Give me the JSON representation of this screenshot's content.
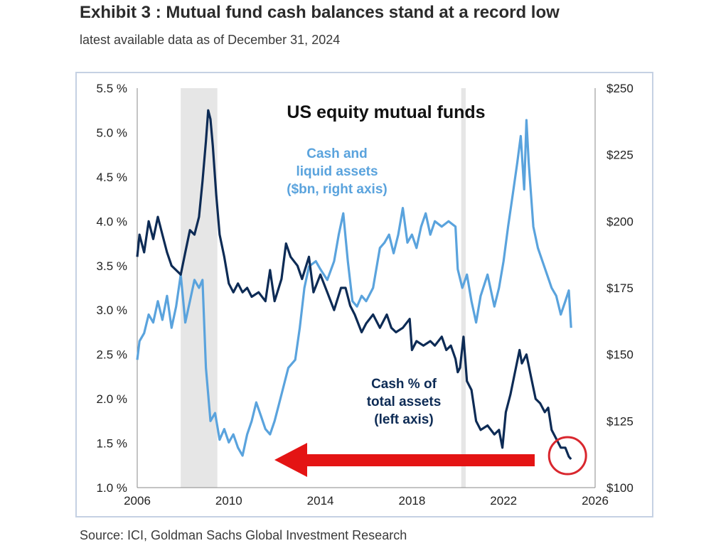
{
  "header": {
    "title": "Exhibit 3 : Mutual fund cash balances stand at a record low",
    "subtitle": "latest available data as of December 31, 2024"
  },
  "footer": {
    "source": "Source: ICI, Goldman Sachs Global Investment Research"
  },
  "colors": {
    "cash_pct": "#0d2b55",
    "cash_bn": "#5aa3dd",
    "recession_band": "#e6e6e6",
    "arrow": "#e41414",
    "circle": "#d9272e"
  },
  "chart_data": {
    "type": "line",
    "title": "US equity mutual funds",
    "x_axis": {
      "min": 2006,
      "max": 2026,
      "ticks": [
        2006,
        2010,
        2014,
        2018,
        2022,
        2026
      ],
      "tick_labels": [
        "2006",
        "2010",
        "2014",
        "2018",
        "2022",
        "2026"
      ]
    },
    "y_left": {
      "min": 1.0,
      "max": 5.5,
      "ticks": [
        1.0,
        1.5,
        2.0,
        2.5,
        3.0,
        3.5,
        4.0,
        4.5,
        5.0,
        5.5
      ],
      "tick_labels": [
        "1.0 %",
        "1.5 %",
        "2.0 %",
        "2.5 %",
        "3.0 %",
        "3.5 %",
        "4.0 %",
        "4.5 %",
        "5.0 %",
        "5.5 %"
      ]
    },
    "y_right": {
      "min": 100,
      "max": 250,
      "ticks": [
        100,
        125,
        150,
        175,
        200,
        225,
        250
      ],
      "tick_labels": [
        "$100",
        "$125",
        "$150",
        "$175",
        "$200",
        "$225",
        "$250"
      ]
    },
    "shaded_periods": [
      [
        2007.9,
        2009.5
      ],
      [
        2020.15,
        2020.35
      ]
    ],
    "series": [
      {
        "name": "Cash % of total assets (left axis)",
        "label_lines": [
          "Cash % of",
          "total assets",
          "(left axis)"
        ],
        "axis": "left",
        "points": [
          [
            2006.0,
            3.6
          ],
          [
            2006.1,
            3.85
          ],
          [
            2006.3,
            3.65
          ],
          [
            2006.5,
            4.0
          ],
          [
            2006.7,
            3.8
          ],
          [
            2006.9,
            4.05
          ],
          [
            2007.1,
            3.85
          ],
          [
            2007.3,
            3.65
          ],
          [
            2007.5,
            3.5
          ],
          [
            2007.7,
            3.45
          ],
          [
            2007.9,
            3.4
          ],
          [
            2008.1,
            3.65
          ],
          [
            2008.3,
            3.9
          ],
          [
            2008.5,
            3.85
          ],
          [
            2008.7,
            4.05
          ],
          [
            2008.85,
            4.45
          ],
          [
            2009.0,
            4.9
          ],
          [
            2009.1,
            5.25
          ],
          [
            2009.2,
            5.15
          ],
          [
            2009.3,
            4.85
          ],
          [
            2009.45,
            4.3
          ],
          [
            2009.6,
            3.85
          ],
          [
            2009.8,
            3.6
          ],
          [
            2010.0,
            3.3
          ],
          [
            2010.2,
            3.2
          ],
          [
            2010.4,
            3.3
          ],
          [
            2010.6,
            3.2
          ],
          [
            2010.8,
            3.25
          ],
          [
            2011.0,
            3.15
          ],
          [
            2011.3,
            3.2
          ],
          [
            2011.6,
            3.1
          ],
          [
            2011.8,
            3.45
          ],
          [
            2012.0,
            3.1
          ],
          [
            2012.3,
            3.35
          ],
          [
            2012.5,
            3.75
          ],
          [
            2012.7,
            3.6
          ],
          [
            2013.0,
            3.5
          ],
          [
            2013.2,
            3.35
          ],
          [
            2013.5,
            3.6
          ],
          [
            2013.7,
            3.2
          ],
          [
            2014.0,
            3.4
          ],
          [
            2014.3,
            3.2
          ],
          [
            2014.6,
            3.0
          ],
          [
            2014.9,
            3.25
          ],
          [
            2015.1,
            3.25
          ],
          [
            2015.3,
            3.05
          ],
          [
            2015.5,
            2.95
          ],
          [
            2015.8,
            2.75
          ],
          [
            2016.0,
            2.85
          ],
          [
            2016.3,
            2.95
          ],
          [
            2016.6,
            2.8
          ],
          [
            2016.9,
            2.95
          ],
          [
            2017.1,
            2.8
          ],
          [
            2017.3,
            2.75
          ],
          [
            2017.6,
            2.8
          ],
          [
            2017.9,
            2.9
          ],
          [
            2018.0,
            2.55
          ],
          [
            2018.2,
            2.65
          ],
          [
            2018.5,
            2.6
          ],
          [
            2018.8,
            2.65
          ],
          [
            2019.0,
            2.6
          ],
          [
            2019.3,
            2.7
          ],
          [
            2019.5,
            2.55
          ],
          [
            2019.7,
            2.6
          ],
          [
            2019.9,
            2.45
          ],
          [
            2020.0,
            2.3
          ],
          [
            2020.1,
            2.35
          ],
          [
            2020.25,
            2.7
          ],
          [
            2020.4,
            2.2
          ],
          [
            2020.6,
            2.1
          ],
          [
            2020.8,
            1.75
          ],
          [
            2021.0,
            1.65
          ],
          [
            2021.3,
            1.7
          ],
          [
            2021.6,
            1.6
          ],
          [
            2021.8,
            1.65
          ],
          [
            2021.95,
            1.45
          ],
          [
            2022.1,
            1.85
          ],
          [
            2022.3,
            2.05
          ],
          [
            2022.5,
            2.3
          ],
          [
            2022.7,
            2.55
          ],
          [
            2022.8,
            2.4
          ],
          [
            2023.0,
            2.5
          ],
          [
            2023.2,
            2.25
          ],
          [
            2023.4,
            2.0
          ],
          [
            2023.6,
            1.95
          ],
          [
            2023.8,
            1.85
          ],
          [
            2023.95,
            1.9
          ],
          [
            2024.1,
            1.65
          ],
          [
            2024.3,
            1.55
          ],
          [
            2024.5,
            1.45
          ],
          [
            2024.7,
            1.45
          ],
          [
            2024.85,
            1.35
          ],
          [
            2024.95,
            1.32
          ]
        ]
      },
      {
        "name": "Cash and liquid assets ($bn, right axis)",
        "label_lines": [
          "Cash and",
          "liquid assets",
          "($bn, right axis)"
        ],
        "axis": "right",
        "points": [
          [
            2006.0,
            148
          ],
          [
            2006.1,
            155
          ],
          [
            2006.3,
            158
          ],
          [
            2006.5,
            165
          ],
          [
            2006.7,
            162
          ],
          [
            2006.9,
            170
          ],
          [
            2007.1,
            163
          ],
          [
            2007.3,
            172
          ],
          [
            2007.5,
            160
          ],
          [
            2007.7,
            168
          ],
          [
            2007.9,
            180
          ],
          [
            2008.1,
            162
          ],
          [
            2008.3,
            170
          ],
          [
            2008.5,
            178
          ],
          [
            2008.7,
            175
          ],
          [
            2008.85,
            178
          ],
          [
            2009.0,
            145
          ],
          [
            2009.2,
            125
          ],
          [
            2009.4,
            128
          ],
          [
            2009.6,
            118
          ],
          [
            2009.8,
            122
          ],
          [
            2010.0,
            117
          ],
          [
            2010.2,
            120
          ],
          [
            2010.4,
            115
          ],
          [
            2010.6,
            112
          ],
          [
            2010.8,
            120
          ],
          [
            2011.0,
            125
          ],
          [
            2011.2,
            132
          ],
          [
            2011.4,
            127
          ],
          [
            2011.6,
            122
          ],
          [
            2011.8,
            120
          ],
          [
            2012.0,
            125
          ],
          [
            2012.3,
            135
          ],
          [
            2012.6,
            145
          ],
          [
            2012.9,
            148
          ],
          [
            2013.1,
            160
          ],
          [
            2013.3,
            175
          ],
          [
            2013.5,
            183
          ],
          [
            2013.8,
            185
          ],
          [
            2014.0,
            182
          ],
          [
            2014.3,
            178
          ],
          [
            2014.6,
            185
          ],
          [
            2014.8,
            195
          ],
          [
            2015.0,
            203
          ],
          [
            2015.2,
            185
          ],
          [
            2015.4,
            170
          ],
          [
            2015.6,
            168
          ],
          [
            2015.8,
            172
          ],
          [
            2016.0,
            170
          ],
          [
            2016.3,
            175
          ],
          [
            2016.6,
            190
          ],
          [
            2016.8,
            192
          ],
          [
            2017.0,
            195
          ],
          [
            2017.2,
            188
          ],
          [
            2017.4,
            195
          ],
          [
            2017.6,
            205
          ],
          [
            2017.8,
            192
          ],
          [
            2018.0,
            195
          ],
          [
            2018.2,
            190
          ],
          [
            2018.4,
            198
          ],
          [
            2018.6,
            203
          ],
          [
            2018.8,
            195
          ],
          [
            2019.0,
            200
          ],
          [
            2019.3,
            198
          ],
          [
            2019.6,
            200
          ],
          [
            2019.9,
            198
          ],
          [
            2020.0,
            182
          ],
          [
            2020.2,
            175
          ],
          [
            2020.4,
            180
          ],
          [
            2020.6,
            170
          ],
          [
            2020.8,
            162
          ],
          [
            2021.0,
            172
          ],
          [
            2021.3,
            180
          ],
          [
            2021.6,
            168
          ],
          [
            2021.8,
            175
          ],
          [
            2022.0,
            185
          ],
          [
            2022.2,
            198
          ],
          [
            2022.4,
            210
          ],
          [
            2022.6,
            222
          ],
          [
            2022.75,
            232
          ],
          [
            2022.9,
            212
          ],
          [
            2023.0,
            238
          ],
          [
            2023.1,
            222
          ],
          [
            2023.3,
            198
          ],
          [
            2023.5,
            190
          ],
          [
            2023.7,
            185
          ],
          [
            2023.9,
            180
          ],
          [
            2024.1,
            175
          ],
          [
            2024.3,
            172
          ],
          [
            2024.5,
            165
          ],
          [
            2024.7,
            170
          ],
          [
            2024.85,
            174
          ],
          [
            2024.95,
            160
          ]
        ]
      }
    ]
  }
}
